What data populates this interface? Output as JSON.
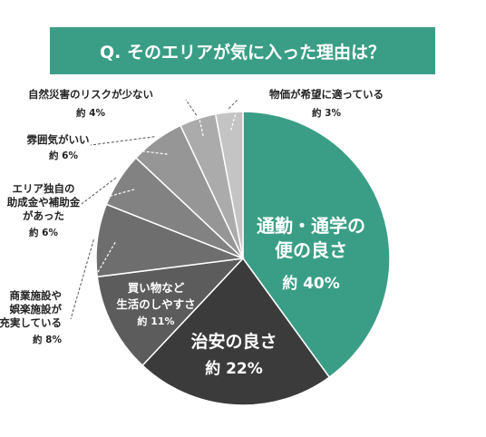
{
  "title": "Q. そのエリアが気に入った理由は？",
  "chart_data": {
    "type": "pie",
    "unit_prefix": "約",
    "slices": [
      {
        "label": "通勤・通学の便の良さ",
        "value": 40,
        "color": "#3a9e86"
      },
      {
        "label": "治安の良さ",
        "value": 22,
        "color": "#3b3b3b"
      },
      {
        "label": "買い物など生活のしやすさ",
        "value": 11,
        "color": "#5c5c5c"
      },
      {
        "label": "商業施設や娯楽施設が充実している",
        "value": 8,
        "color": "#6e6e6e"
      },
      {
        "label": "エリア独自の助成金や補助金があった",
        "value": 6,
        "color": "#828282"
      },
      {
        "label": "雰囲気がいい",
        "value": 6,
        "color": "#969696"
      },
      {
        "label": "自然災害のリスクが少ない",
        "value": 4,
        "color": "#ababab"
      },
      {
        "label": "物価が希望に適っている",
        "value": 3,
        "color": "#c4c4c4"
      }
    ]
  },
  "labels": {
    "s0": {
      "line1": "通勤・通学の",
      "line2": "便の良さ",
      "value": "約 40%"
    },
    "s1": {
      "line1": "治安の良さ",
      "value": "約 22%"
    },
    "s2": {
      "line1": "買い物など",
      "line2": "生活のしやすさ",
      "value": "約 11%"
    },
    "s3": {
      "line1": "商業施設や",
      "line2": "娯楽施設が",
      "line3": "充実している",
      "value": "約 8%"
    },
    "s4": {
      "line1": "エリア独自の",
      "line2": "助成金や補助金",
      "line3": "があった",
      "value": "約 6%"
    },
    "s5": {
      "line1": "雰囲気がいい",
      "value": "約 6%"
    },
    "s6": {
      "line1": "自然災害のリスクが少ない",
      "value": "約 4%"
    },
    "s7": {
      "line1": "物価が希望に適っている",
      "value": "約 3%"
    }
  }
}
